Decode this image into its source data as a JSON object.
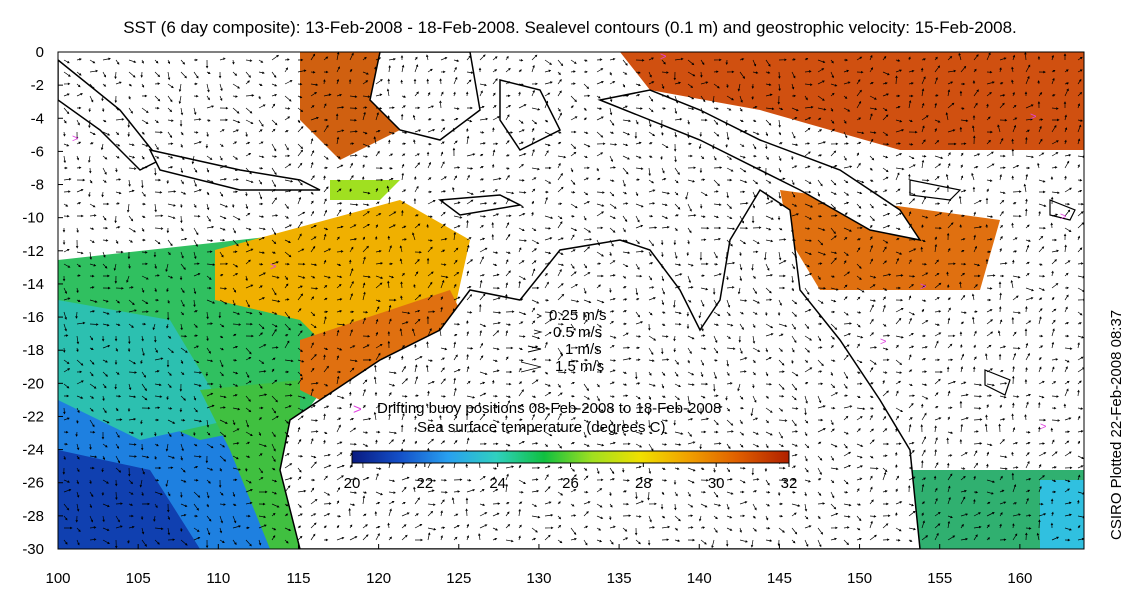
{
  "title": "SST (6 day composite): 13-Feb-2008 - 18-Feb-2008. Sealevel contours (0.1 m) and geostrophic velocity: 15-Feb-2008.",
  "credit": "CSIRO Plotted 22-Feb-2008 08:37",
  "axes": {
    "x_ticks": [
      "100",
      "105",
      "110",
      "115",
      "120",
      "125",
      "130",
      "135",
      "140",
      "145",
      "150",
      "155",
      "160"
    ],
    "y_ticks": [
      "0",
      "-2",
      "-4",
      "-6",
      "-8",
      "-10",
      "-12",
      "-14",
      "-16",
      "-18",
      "-20",
      "-22",
      "-24",
      "-26",
      "-28",
      "-30"
    ],
    "x_range": [
      100,
      164
    ],
    "y_range": [
      -30,
      0
    ]
  },
  "velocity_legend": {
    "items": [
      "0.25 m/s",
      "0.5 m/s",
      "1 m/s",
      "1.5 m/s"
    ]
  },
  "buoy_legend": {
    "symbol": ">",
    "label": "Drifting buoy positions 08-Feb-2008 to 18-Feb-2008",
    "color": "#e040e0"
  },
  "colorbar": {
    "label": "Sea surface temperature (degrees C)",
    "ticks": [
      "20",
      "22",
      "24",
      "26",
      "28",
      "30",
      "32"
    ],
    "range": [
      20,
      32
    ],
    "colors": [
      "#0a1a80",
      "#1450c8",
      "#28a0f0",
      "#30d0c0",
      "#10c040",
      "#a0e020",
      "#f0e000",
      "#f0a000",
      "#e06000",
      "#b02000"
    ]
  },
  "colors": {
    "land": "#ffffff",
    "coast": "#000000",
    "ocean_no_data": "#ffffff"
  }
}
